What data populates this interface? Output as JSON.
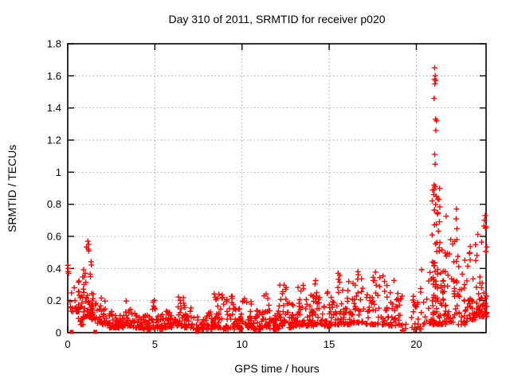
{
  "chart_data": {
    "type": "scatter",
    "title": "Day 310 of 2011, SRMTID for receiver p020",
    "xlabel": "GPS time / hours",
    "ylabel": "SRMTID / TECUs",
    "xlim": [
      0,
      24
    ],
    "ylim": [
      0,
      1.8
    ],
    "xticks": {
      "values": [
        0,
        5,
        10,
        15,
        20
      ],
      "labels": [
        "0",
        "5",
        "10",
        "15",
        "20"
      ]
    },
    "yticks": {
      "values": [
        0,
        0.2,
        0.4,
        0.6,
        0.8,
        1.0,
        1.2,
        1.4,
        1.6,
        1.8
      ],
      "labels": [
        "0",
        "0.2",
        "0.4",
        "0.6",
        "0.8",
        "1",
        "1.2",
        "1.4",
        "1.6",
        "1.8"
      ]
    },
    "grid": {
      "show": true,
      "style": "dotted",
      "color": "#a8a8a8"
    },
    "background": "#ffffff",
    "border_color": "#000000",
    "legend": "none",
    "render_seed": 2011310,
    "series": [
      {
        "name": "SRMTID",
        "marker": "plus",
        "color": "#ff0000",
        "band_bins": [
          [
            0.12,
            0.65,
            0.13,
            0.3,
            20
          ],
          [
            0.6,
            0.9,
            0.05,
            0.36,
            22
          ],
          [
            0.9,
            1.4,
            0.1,
            0.57,
            42
          ],
          [
            1.35,
            1.6,
            0.08,
            0.3,
            16
          ],
          [
            1.6,
            2.3,
            0.05,
            0.22,
            30
          ],
          [
            2.3,
            2.8,
            0.03,
            0.16,
            26
          ],
          [
            2.8,
            3.3,
            0.03,
            0.14,
            26
          ],
          [
            3.3,
            3.7,
            0.04,
            0.2,
            22
          ],
          [
            3.7,
            4.3,
            0.03,
            0.13,
            28
          ],
          [
            4.3,
            4.8,
            0.02,
            0.12,
            24
          ],
          [
            4.8,
            5.1,
            0.03,
            0.21,
            14
          ],
          [
            5.1,
            5.6,
            0.02,
            0.12,
            24
          ],
          [
            5.6,
            6.1,
            0.03,
            0.15,
            26
          ],
          [
            6.1,
            6.7,
            0.04,
            0.24,
            28
          ],
          [
            6.7,
            7.2,
            0.03,
            0.16,
            26
          ],
          [
            7.2,
            7.8,
            0.02,
            0.12,
            26
          ],
          [
            7.8,
            8.4,
            0.02,
            0.14,
            28
          ],
          [
            8.4,
            8.9,
            0.03,
            0.27,
            28
          ],
          [
            8.9,
            9.5,
            0.02,
            0.24,
            28
          ],
          [
            9.5,
            10.0,
            0.02,
            0.15,
            28
          ],
          [
            10.0,
            10.6,
            0.03,
            0.22,
            28
          ],
          [
            10.6,
            11.1,
            0.02,
            0.16,
            28
          ],
          [
            11.1,
            11.6,
            0.03,
            0.28,
            28
          ],
          [
            11.6,
            12.1,
            0.02,
            0.16,
            28
          ],
          [
            12.1,
            12.6,
            0.04,
            0.3,
            30
          ],
          [
            12.6,
            13.1,
            0.03,
            0.2,
            28
          ],
          [
            13.1,
            13.6,
            0.04,
            0.33,
            30
          ],
          [
            13.6,
            14.1,
            0.04,
            0.25,
            28
          ],
          [
            14.1,
            14.7,
            0.05,
            0.33,
            30
          ],
          [
            14.7,
            15.2,
            0.04,
            0.28,
            28
          ],
          [
            15.2,
            15.8,
            0.05,
            0.38,
            30
          ],
          [
            15.8,
            16.3,
            0.05,
            0.33,
            30
          ],
          [
            16.3,
            16.9,
            0.06,
            0.38,
            32
          ],
          [
            16.9,
            17.6,
            0.05,
            0.35,
            30
          ],
          [
            17.6,
            18.4,
            0.05,
            0.38,
            34
          ],
          [
            18.4,
            19.2,
            0.04,
            0.33,
            36
          ],
          [
            19.2,
            19.8,
            0.01,
            0.1,
            6
          ],
          [
            19.8,
            20.3,
            0.02,
            0.3,
            20
          ],
          [
            20.3,
            20.9,
            0.05,
            0.42,
            16
          ],
          [
            20.9,
            21.35,
            0.05,
            0.92,
            70
          ],
          [
            21.35,
            21.7,
            0.05,
            0.6,
            30
          ],
          [
            21.7,
            22.35,
            0.06,
            0.78,
            40
          ],
          [
            22.35,
            22.9,
            0.05,
            0.5,
            30
          ],
          [
            22.9,
            23.4,
            0.08,
            0.55,
            30
          ],
          [
            23.4,
            23.85,
            0.1,
            0.62,
            30
          ],
          [
            23.85,
            24.05,
            0.1,
            0.76,
            24
          ]
        ],
        "peak_points": [
          [
            0.02,
            0.42
          ],
          [
            0.03,
            0.4
          ],
          [
            0.02,
            0.38
          ],
          [
            0.05,
            0.37
          ],
          [
            1.15,
            0.57
          ],
          [
            1.2,
            0.55
          ],
          [
            1.18,
            0.52
          ],
          [
            19.85,
            0.19
          ],
          [
            19.95,
            0.16
          ],
          [
            21.05,
            1.65
          ],
          [
            21.08,
            1.6
          ],
          [
            21.05,
            1.58
          ],
          [
            21.1,
            1.57
          ],
          [
            21.06,
            1.55
          ],
          [
            21.02,
            1.46
          ],
          [
            21.1,
            1.33
          ],
          [
            21.16,
            1.32
          ],
          [
            21.12,
            1.26
          ],
          [
            21.05,
            1.11
          ],
          [
            21.08,
            1.05
          ],
          [
            21.02,
            0.92
          ],
          [
            21.0,
            0.86
          ],
          [
            21.3,
            0.83
          ],
          [
            23.95,
            0.73
          ],
          [
            23.9,
            0.7
          ],
          [
            24.0,
            0.66
          ]
        ],
        "zero_square_hours": [
          0.22,
          1.58,
          7.42
        ]
      }
    ]
  }
}
